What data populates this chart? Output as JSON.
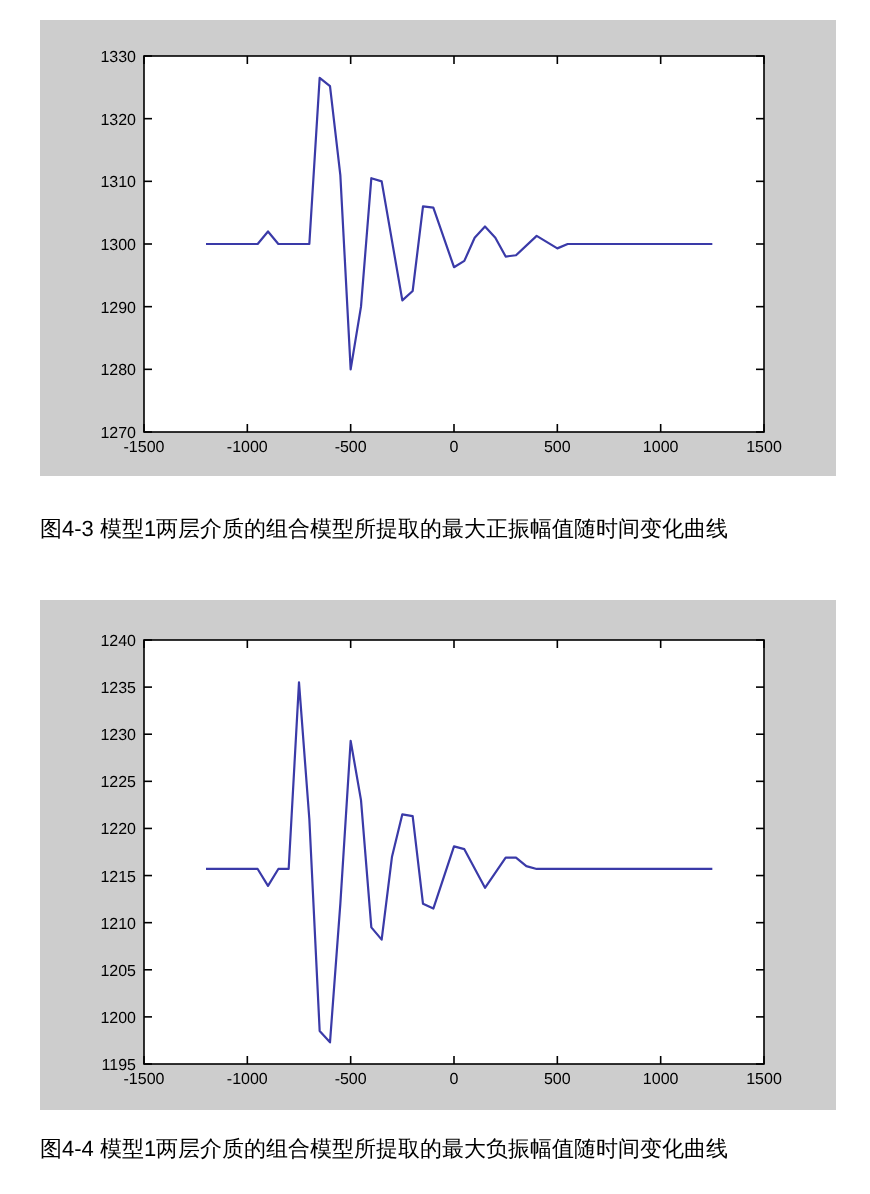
{
  "chart_data": [
    {
      "type": "line",
      "x": [
        -1200,
        -950,
        -900,
        -850,
        -700,
        -650,
        -600,
        -550,
        -500,
        -450,
        -400,
        -350,
        -250,
        -200,
        -150,
        -100,
        0,
        50,
        100,
        150,
        200,
        250,
        300,
        400,
        500,
        550,
        1250
      ],
      "series": [
        {
          "color": "#3a3aa8",
          "values": [
            1300,
            1300,
            1302,
            1300,
            1300,
            1326.5,
            1325.2,
            1311,
            1280,
            1290,
            1310.5,
            1310,
            1291,
            1292.5,
            1306,
            1305.8,
            1296.3,
            1297.3,
            1301,
            1302.8,
            1301,
            1298,
            1298.2,
            1301.3,
            1299.3,
            1300,
            1300
          ]
        }
      ],
      "xlim": [
        -1500,
        1500
      ],
      "xticks": [
        -1500,
        -1000,
        -500,
        0,
        500,
        1000,
        1500
      ],
      "ylim": [
        1270,
        1330
      ],
      "yticks": [
        1270,
        1280,
        1290,
        1300,
        1310,
        1320,
        1330
      ],
      "annotations": [
        "图4-3 模型1两层介质的组合模型所提取的最大正振幅值随时间变化曲线"
      ]
    },
    {
      "type": "line",
      "x": [
        -1200,
        -950,
        -900,
        -850,
        -800,
        -750,
        -700,
        -650,
        -600,
        -550,
        -500,
        -450,
        -400,
        -350,
        -300,
        -250,
        -200,
        -150,
        -100,
        0,
        50,
        150,
        250,
        300,
        350,
        400,
        1250
      ],
      "series": [
        {
          "color": "#3a3aa8",
          "values": [
            1215.7,
            1215.7,
            1213.9,
            1215.7,
            1215.7,
            1235.5,
            1221,
            1198.5,
            1197.3,
            1212,
            1229.3,
            1223,
            1209.5,
            1208.2,
            1217,
            1221.5,
            1221.3,
            1212,
            1211.5,
            1218.1,
            1217.8,
            1213.7,
            1216.9,
            1216.9,
            1216,
            1215.7,
            1215.7
          ]
        }
      ],
      "xlim": [
        -1500,
        1500
      ],
      "xticks": [
        -1500,
        -1000,
        -500,
        0,
        500,
        1000,
        1500
      ],
      "ylim": [
        1195,
        1240
      ],
      "yticks": [
        1195,
        1200,
        1205,
        1210,
        1215,
        1220,
        1225,
        1230,
        1235,
        1240
      ],
      "annotations": [
        "图4-4 模型1两层介质的组合模型所提取的最大负振幅值随时间变化曲线"
      ]
    }
  ]
}
